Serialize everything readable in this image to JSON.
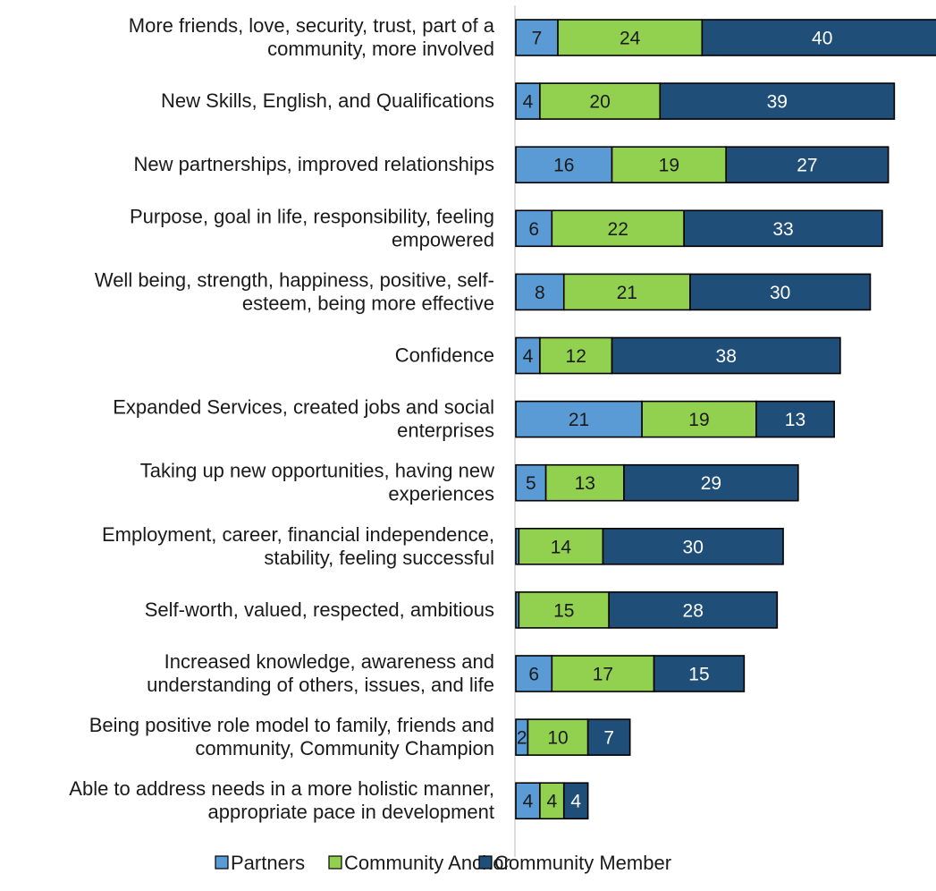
{
  "chart_data": {
    "type": "bar",
    "orientation": "horizontal",
    "stacked": true,
    "title": "",
    "xlabel": "",
    "ylabel": "",
    "xlim": [
      0,
      71
    ],
    "grid": false,
    "legend_position": "bottom",
    "categories": [
      [
        "More friends, love, security, trust, part of a",
        "community, more involved"
      ],
      [
        "New Skills, English, and Qualifications"
      ],
      [
        "New partnerships, improved relationships"
      ],
      [
        "Purpose, goal in life, responsibility, feeling",
        "empowered"
      ],
      [
        "Well being, strength, happiness, positive, self-",
        "esteem, being more effective"
      ],
      [
        "Confidence"
      ],
      [
        "Expanded Services, created jobs and social",
        "enterprises"
      ],
      [
        "Taking up new opportunities, having new",
        "experiences"
      ],
      [
        "Employment, career, financial independence,",
        "stability, feeling successful"
      ],
      [
        "Self-worth, valued, respected, ambitious"
      ],
      [
        "Increased knowledge, awareness and",
        "understanding of others, issues, and life"
      ],
      [
        "Being positive role model to family, friends and",
        "community, Community Champion"
      ],
      [
        "Able to address needs in a more holistic manner,",
        "appropriate pace in development"
      ]
    ],
    "series": [
      {
        "name": "Partners",
        "color": "#5b9bd5",
        "label_color": "#1a1a1a",
        "values": [
          7,
          4,
          16,
          6,
          8,
          4,
          21,
          5,
          0.5,
          0.5,
          6,
          2,
          4
        ],
        "labels": [
          "7",
          "4",
          "16",
          "6",
          "8",
          "4",
          "21",
          "5",
          "",
          "",
          "6",
          "2",
          "4"
        ]
      },
      {
        "name": "Community Anchor",
        "color": "#92d050",
        "label_color": "#1a1a1a",
        "values": [
          24,
          20,
          19,
          22,
          21,
          12,
          19,
          13,
          14,
          15,
          17,
          10,
          4
        ],
        "labels": [
          "24",
          "20",
          "19",
          "22",
          "21",
          "12",
          "19",
          "13",
          "14",
          "15",
          "17",
          "10",
          "4"
        ]
      },
      {
        "name": "Community Member",
        "color": "#1f4e79",
        "label_color": "#ffffff",
        "values": [
          40,
          39,
          27,
          33,
          30,
          38,
          13,
          29,
          30,
          28,
          15,
          7,
          4
        ],
        "labels": [
          "40",
          "39",
          "27",
          "33",
          "30",
          "38",
          "13",
          "29",
          "30",
          "28",
          "15",
          "7",
          "4"
        ]
      }
    ]
  }
}
